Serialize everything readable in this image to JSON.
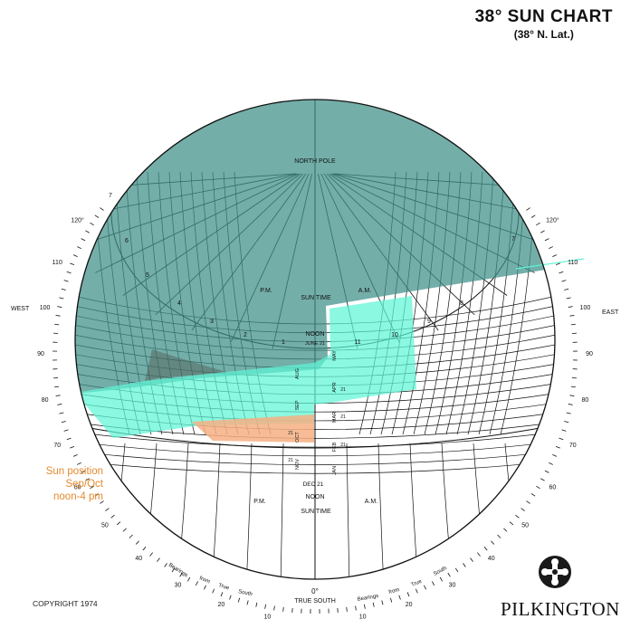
{
  "title": "38° SUN CHART",
  "subtitle": "(38° N. Lat.)",
  "labels": {
    "north_pole": "NORTH POLE",
    "sun_time": "SUN TIME",
    "pm": "P.M.",
    "am": "A.M.",
    "noon": "NOON",
    "west": "WEST",
    "east": "EAST",
    "true_south": "TRUE SOUTH",
    "bearings": "Bearings",
    "from": "from",
    "true": "True",
    "south": "South",
    "dec21": "DEC 21",
    "june21": "JUNE 21"
  },
  "hours_am": [
    "11",
    "10",
    "9",
    "8",
    "7"
  ],
  "hours_pm": [
    "1",
    "2",
    "3",
    "4",
    "5",
    "6",
    "7"
  ],
  "months": [
    "MAY",
    "APR",
    "MAR",
    "FEB",
    "JAN",
    "AUG",
    "SEP",
    "OCT",
    "NOV"
  ],
  "date_marks": [
    "21",
    "21",
    "21",
    "21",
    "21"
  ],
  "bearing_ticks_left": [
    "120°",
    "110",
    "100",
    "90",
    "80",
    "70",
    "60",
    "50",
    "40",
    "30",
    "20",
    "10"
  ],
  "bearing_ticks_right": [
    "120°",
    "110",
    "100",
    "90",
    "80",
    "70",
    "60",
    "50",
    "40",
    "30",
    "20",
    "10"
  ],
  "zero": "0°",
  "annotation": [
    "Sun position",
    "Sep/Oct",
    "noon-4 pm"
  ],
  "copyright": "COPYRIGHT 1974",
  "brand": "PILKINGTON",
  "colors": {
    "shade": "#3f8f88",
    "cyan": "#5ef5d6",
    "orange": "#f6b084",
    "annotation": "#e58a2e"
  }
}
